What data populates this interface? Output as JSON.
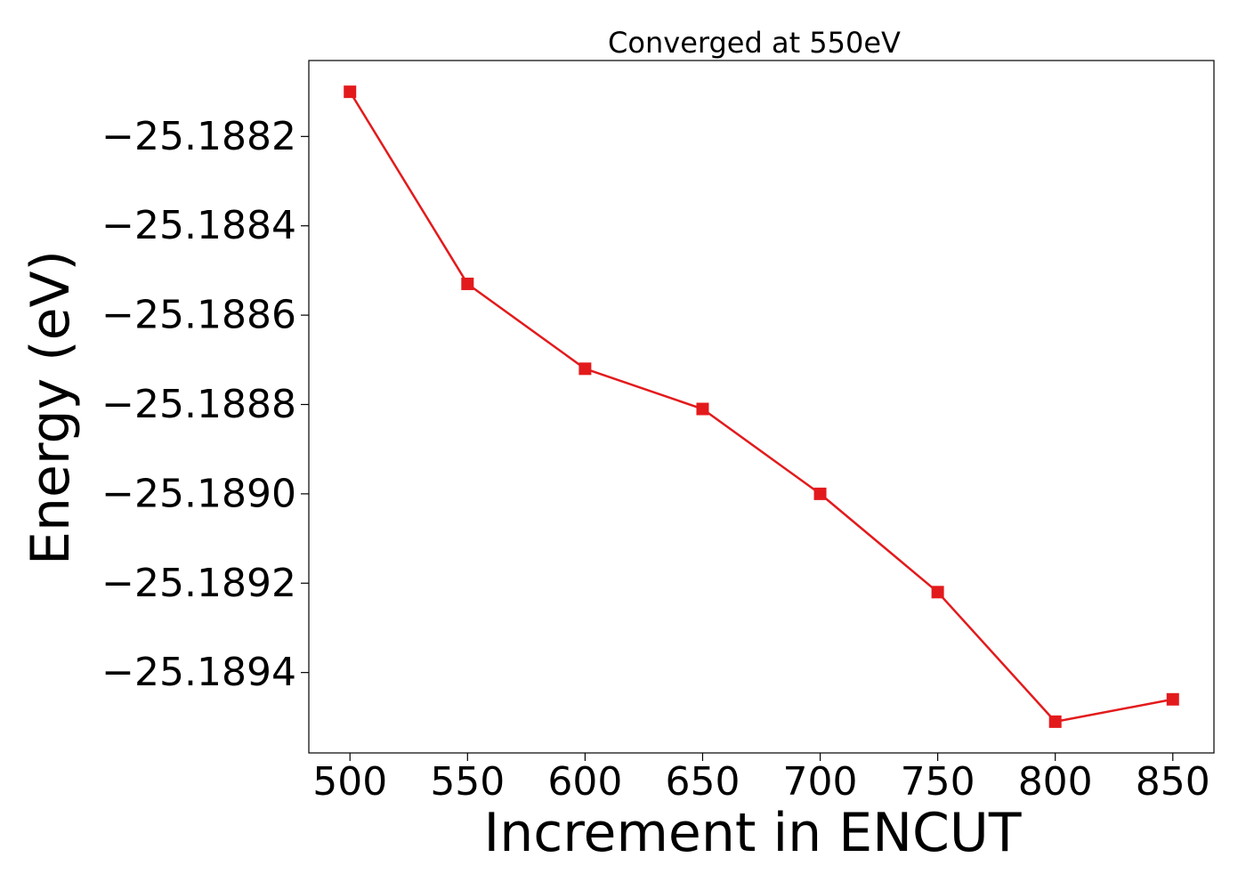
{
  "chart_data": {
    "type": "line",
    "title": "Converged at 550eV",
    "xlabel": "Increment in ENCUT",
    "ylabel": "Energy (eV)",
    "x": [
      500,
      550,
      600,
      650,
      700,
      750,
      800,
      850
    ],
    "series": [
      {
        "values": [
          -25.1881,
          -25.18853,
          -25.18872,
          -25.18881,
          -25.189,
          -25.18922,
          -25.18951,
          -25.18946
        ],
        "color": "#e31a1c",
        "marker": "square"
      }
    ],
    "xticks": [
      500,
      550,
      600,
      650,
      700,
      750,
      800,
      850
    ],
    "xtick_labels": [
      "500",
      "550",
      "600",
      "650",
      "700",
      "750",
      "800",
      "850"
    ],
    "yticks": [
      -25.1882,
      -25.1884,
      -25.1886,
      -25.1888,
      -25.189,
      -25.1892,
      -25.1894
    ],
    "ytick_labels": [
      "−25.1882",
      "−25.1884",
      "−25.1886",
      "−25.1888",
      "−25.1890",
      "−25.1892",
      "−25.1894"
    ],
    "xlim": [
      482.5,
      867.5
    ],
    "ylim": [
      -25.18958,
      -25.18803
    ],
    "grid": false,
    "legend": "none"
  }
}
